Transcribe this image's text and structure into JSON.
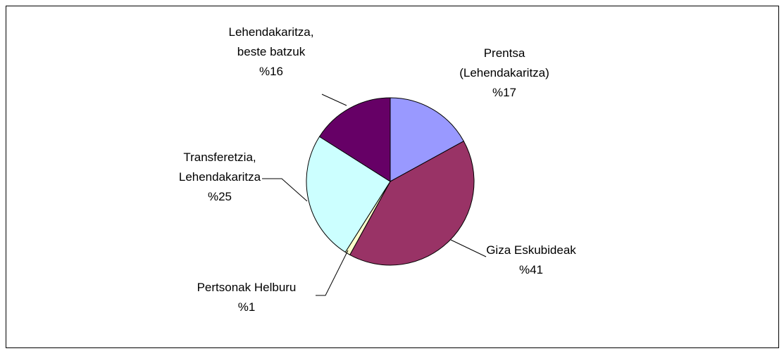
{
  "chart_data": {
    "type": "pie",
    "categories": [
      "Prentsa\n(Lehendakaritza)",
      "Giza Eskubideak",
      "Pertsonak Helburu",
      "Transferetzia,\nLehendakaritza",
      "Lehendakaritza,\nbeste batzuk"
    ],
    "values": [
      17,
      41,
      1,
      25,
      16
    ],
    "value_labels": [
      "%17",
      "%41",
      "%1",
      "%25",
      "%16"
    ],
    "colors": [
      "#9999ff",
      "#993366",
      "#ffffcc",
      "#ccffff",
      "#660066"
    ]
  }
}
